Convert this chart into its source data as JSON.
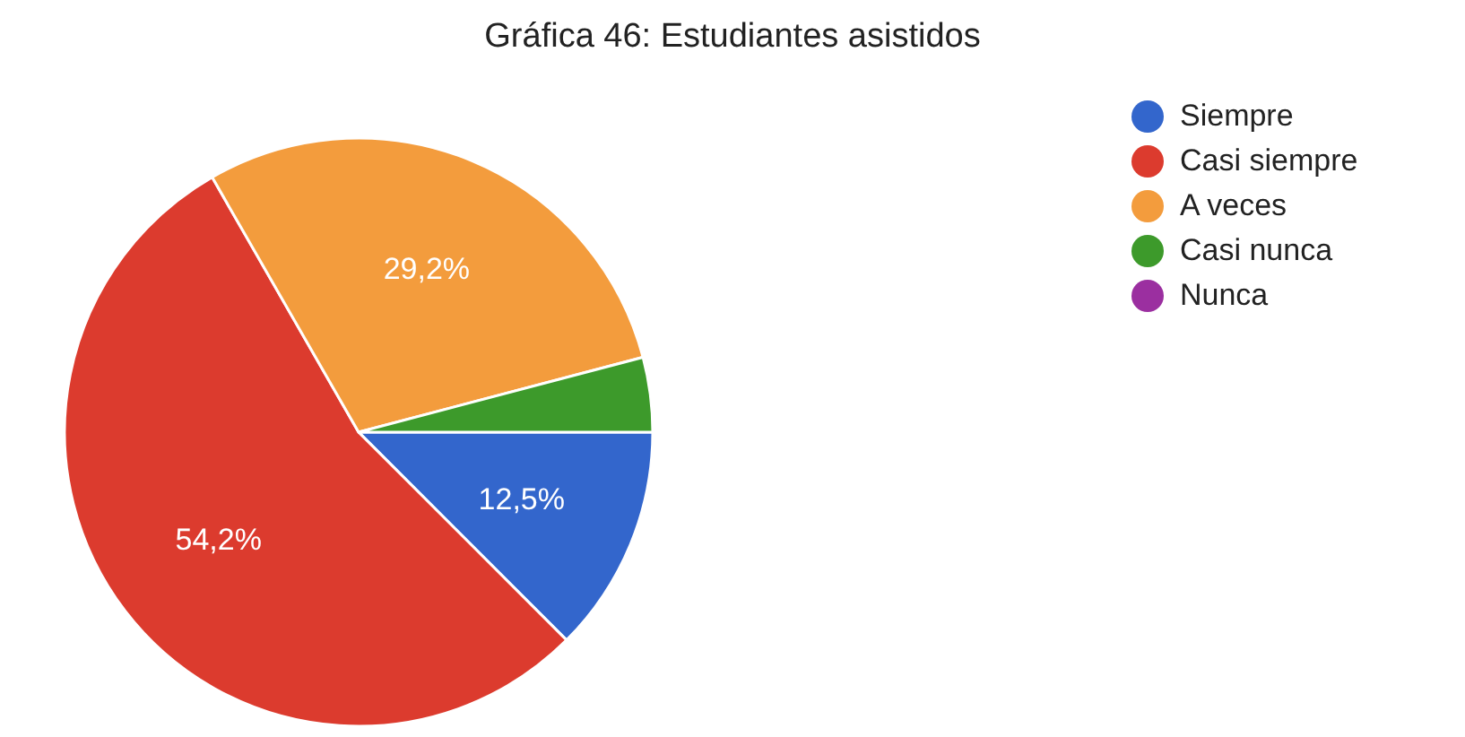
{
  "chart_data": {
    "type": "pie",
    "title": "Gráfica 46: Estudiantes asistidos",
    "categories": [
      "Siempre",
      "Casi siempre",
      "A veces",
      "Casi nunca",
      "Nunca"
    ],
    "values": [
      12.5,
      54.2,
      29.2,
      4.1,
      0
    ],
    "value_labels": [
      "12,5%",
      "54,2%",
      "29,2%",
      null,
      null
    ],
    "colors": [
      "#3366cc",
      "#dc3b2e",
      "#f39c3d",
      "#3d9a2b",
      "#9b2fa0"
    ],
    "legend": "right"
  }
}
